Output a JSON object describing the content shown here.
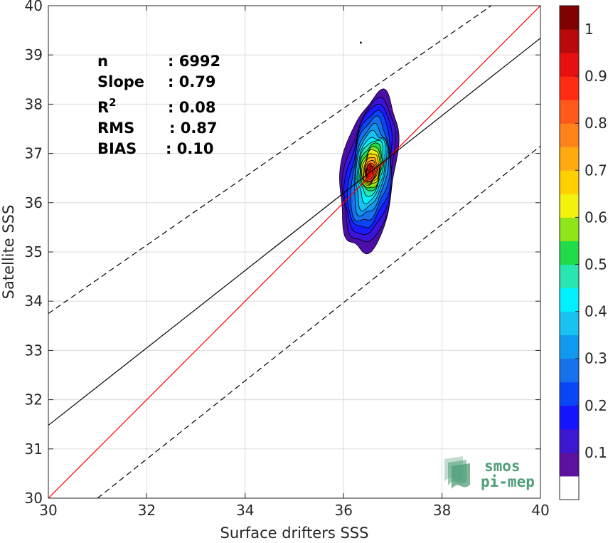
{
  "chart_data": {
    "type": "contour-scatter",
    "xlabel": "Surface drifters SSS",
    "ylabel": "Satellite SSS",
    "xlim": [
      30,
      40
    ],
    "ylim": [
      30,
      40
    ],
    "xticks": [
      30,
      32,
      34,
      36,
      38,
      40
    ],
    "yticks": [
      30,
      31,
      32,
      33,
      34,
      35,
      36,
      37,
      38,
      39,
      40
    ],
    "grid": true,
    "lines": [
      {
        "name": "",
        "kind": "identity",
        "color": "#ff0000",
        "style": "solid",
        "slope": 1.0,
        "intercept": 0.0
      },
      {
        "name": "",
        "kind": "regression",
        "color": "#000000",
        "style": "solid",
        "points": [
          [
            30,
            31.48
          ],
          [
            40,
            39.34
          ]
        ]
      },
      {
        "name": "",
        "kind": "upper-bound",
        "color": "#000000",
        "style": "dashed",
        "points": [
          [
            30,
            33.75
          ],
          [
            39.0,
            40
          ]
        ]
      },
      {
        "name": "",
        "kind": "lower-bound",
        "color": "#000000",
        "style": "dashed",
        "points": [
          [
            31.0,
            30
          ],
          [
            40,
            37.15
          ]
        ]
      }
    ],
    "stats": [
      {
        "label": "n",
        "value": ": 6992"
      },
      {
        "label": "Slope",
        "value": ": 0.79"
      },
      {
        "label": "R",
        "sup": "2",
        "value": ": 0.08"
      },
      {
        "label": "RMS",
        "value": ": 0.87"
      },
      {
        "label": "BIAS",
        "value": ": 0.10"
      }
    ],
    "outlier_point": [
      36.35,
      39.25
    ],
    "contours": [
      {
        "level": 0.05,
        "color": "#4b0fa8",
        "center": [
          36.52,
          36.6
        ],
        "rx": 0.55,
        "ry": 1.6
      },
      {
        "level": 0.1,
        "color": "#3a14d8",
        "center": [
          36.53,
          36.6
        ],
        "rx": 0.49,
        "ry": 1.45
      },
      {
        "level": 0.15,
        "color": "#1a1aff",
        "center": [
          36.53,
          36.62
        ],
        "rx": 0.45,
        "ry": 1.32
      },
      {
        "level": 0.2,
        "color": "#0a45f5",
        "center": [
          36.54,
          36.63
        ],
        "rx": 0.41,
        "ry": 1.18
      },
      {
        "level": 0.25,
        "color": "#1770ec",
        "center": [
          36.54,
          36.64
        ],
        "rx": 0.37,
        "ry": 1.05
      },
      {
        "level": 0.3,
        "color": "#0f9af0",
        "center": [
          36.55,
          36.66
        ],
        "rx": 0.33,
        "ry": 0.9
      },
      {
        "level": 0.35,
        "color": "#18c2f2",
        "center": [
          36.55,
          36.68
        ],
        "rx": 0.3,
        "ry": 0.78
      },
      {
        "level": 0.4,
        "color": "#00f0ff",
        "center": [
          36.56,
          36.7
        ],
        "rx": 0.27,
        "ry": 0.66
      },
      {
        "level": 0.45,
        "color": "#28e6b0",
        "center": [
          36.56,
          36.72
        ],
        "rx": 0.245,
        "ry": 0.56
      },
      {
        "level": 0.5,
        "color": "#20dc48",
        "center": [
          36.56,
          36.72
        ],
        "rx": 0.22,
        "ry": 0.48
      },
      {
        "level": 0.55,
        "color": "#8ee61a",
        "center": [
          36.56,
          36.7
        ],
        "rx": 0.2,
        "ry": 0.42
      },
      {
        "level": 0.6,
        "color": "#f2f20c",
        "center": [
          36.56,
          36.7
        ],
        "rx": 0.18,
        "ry": 0.36
      },
      {
        "level": 0.65,
        "color": "#ffd000",
        "center": [
          36.56,
          36.68
        ],
        "rx": 0.16,
        "ry": 0.31
      },
      {
        "level": 0.7,
        "color": "#ffaa10",
        "center": [
          36.55,
          36.66
        ],
        "rx": 0.14,
        "ry": 0.26
      },
      {
        "level": 0.75,
        "color": "#ff8218",
        "center": [
          36.55,
          36.64
        ],
        "rx": 0.12,
        "ry": 0.22
      },
      {
        "level": 0.8,
        "color": "#ff5a1c",
        "center": [
          36.55,
          36.62
        ],
        "rx": 0.1,
        "ry": 0.18
      },
      {
        "level": 0.85,
        "color": "#ff2b12",
        "center": [
          36.54,
          36.62
        ],
        "rx": 0.08,
        "ry": 0.14
      },
      {
        "level": 0.9,
        "color": "#e61010",
        "center": [
          36.53,
          36.64
        ],
        "rx": 0.06,
        "ry": 0.11
      },
      {
        "level": 0.95,
        "color": "#b80a0a",
        "center": [
          36.52,
          36.72
        ],
        "rx": 0.04,
        "ry": 0.08
      }
    ],
    "colorbar": {
      "range": [
        0,
        1
      ],
      "ticks": [
        "0.1",
        "0.2",
        "0.3",
        "0.4",
        "0.5",
        "0.6",
        "0.7",
        "0.8",
        "0.9",
        "1"
      ],
      "colors": [
        "#ffffff",
        "#5e109f",
        "#3e17d0",
        "#1414ff",
        "#0a45f5",
        "#1770ec",
        "#0f9af0",
        "#18c2f2",
        "#00f0ff",
        "#28e6b0",
        "#20dc48",
        "#8ee61a",
        "#f2f20c",
        "#ffd000",
        "#ffaa10",
        "#ff8218",
        "#ff5a1c",
        "#ff2b12",
        "#e61010",
        "#b80a0a",
        "#800000"
      ]
    }
  },
  "logo": {
    "line1": "smos",
    "line2": "pi-mep",
    "color": "#4f9e77"
  }
}
